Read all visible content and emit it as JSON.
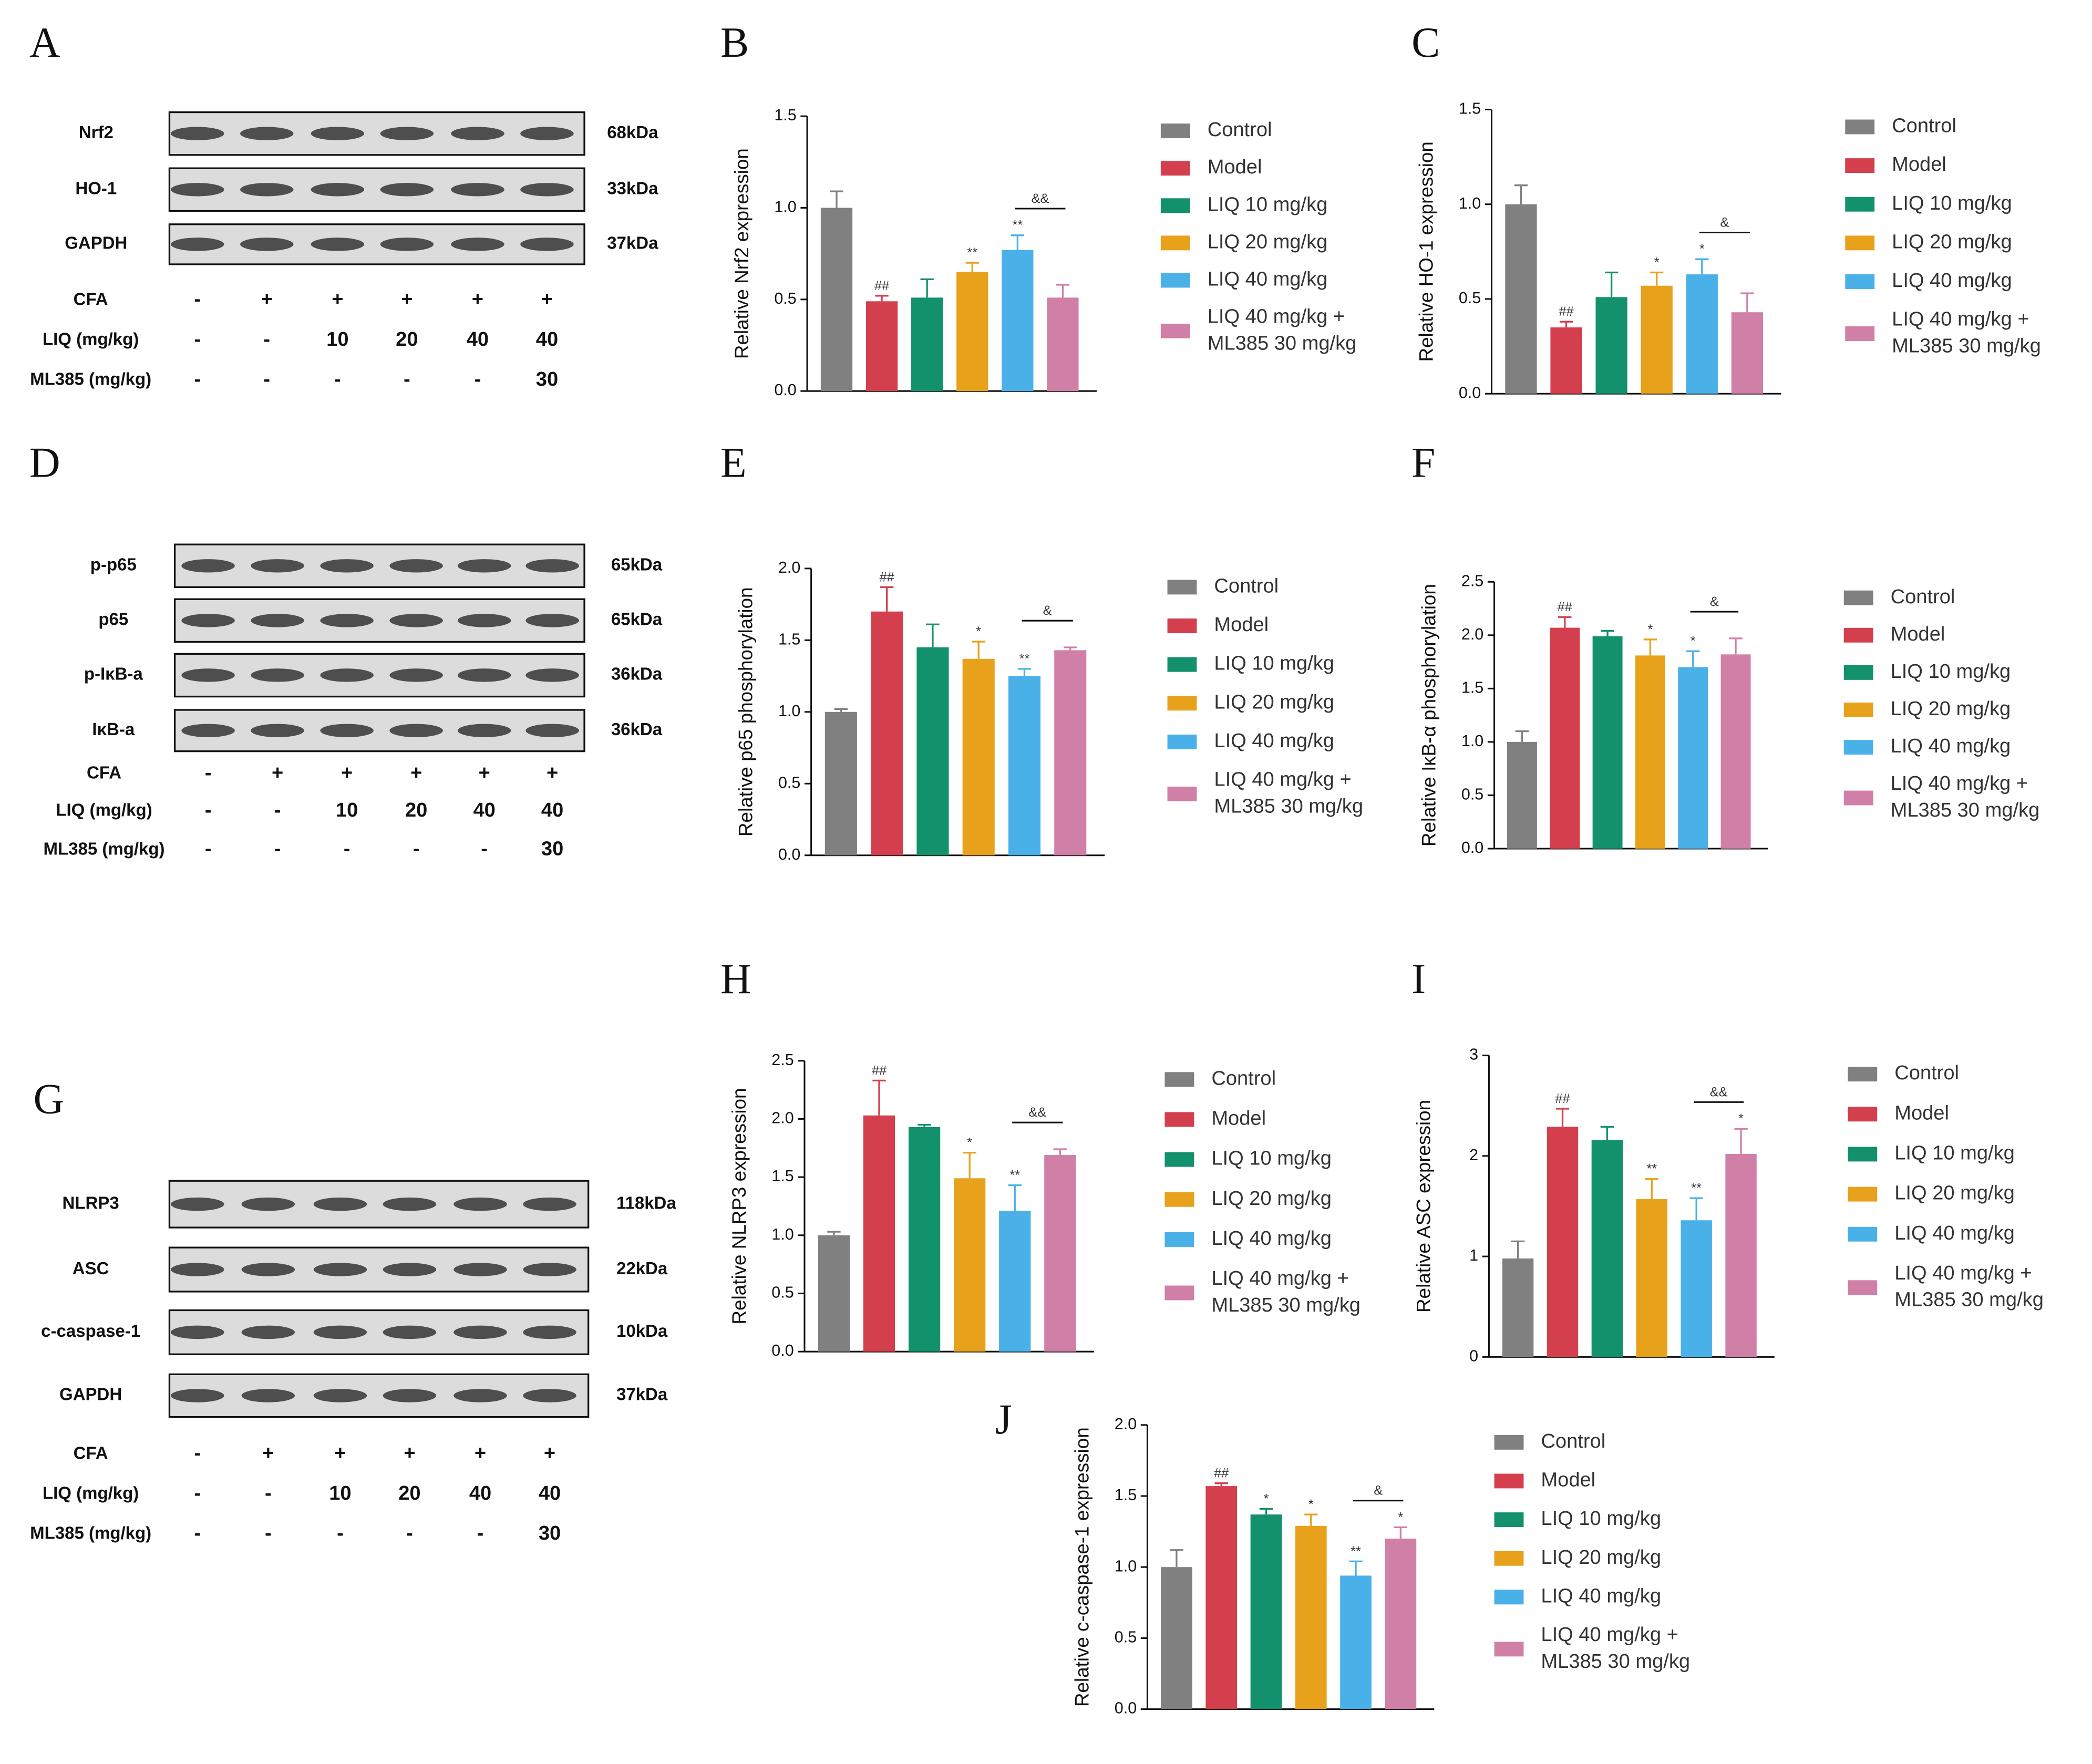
{
  "chart_data": [
    {
      "type": "bar",
      "panel": "B",
      "y_label": "Relative Nrf2 expression",
      "categories": [
        "Control",
        "Model",
        "LIQ 10 mg/kg",
        "LIQ 20 mg/kg",
        "LIQ 40 mg/kg",
        "LIQ 40 mg/kg + ML385 30 mg/kg"
      ],
      "colors": [
        "#808080",
        "#d43f4e",
        "#13906c",
        "#e8a11a",
        "#4ab1e8",
        "#d07fa6"
      ],
      "values": [
        1.0,
        0.49,
        0.51,
        0.65,
        0.77,
        0.51
      ],
      "errors": [
        0.09,
        0.03,
        0.1,
        0.05,
        0.08,
        0.07
      ],
      "significance": [
        null,
        "##",
        null,
        "**",
        "**",
        null
      ],
      "bracket_label": "&&",
      "ylim": [
        0,
        1.5
      ],
      "yticks": [
        {
          "value": 0,
          "label": "0.0"
        },
        0.5,
        {
          "value": 1,
          "label": "1.0"
        },
        1.5
      ]
    },
    {
      "type": "bar",
      "panel": "C",
      "y_label": "Relative HO-1 expression",
      "categories": [
        "Control",
        "Model",
        "LIQ 10 mg/kg",
        "LIQ 20 mg/kg",
        "LIQ 40 mg/kg",
        "LIQ 40 mg/kg + ML385 30 mg/kg"
      ],
      "colors": [
        "#808080",
        "#d43f4e",
        "#13906c",
        "#e8a11a",
        "#4ab1e8",
        "#d07fa6"
      ],
      "values": [
        1.0,
        0.35,
        0.51,
        0.57,
        0.63,
        0.43
      ],
      "errors": [
        0.1,
        0.03,
        0.13,
        0.07,
        0.08,
        0.1
      ],
      "significance": [
        null,
        "##",
        null,
        "*",
        "*",
        null
      ],
      "bracket_label": "&",
      "ylim": [
        0,
        1.5
      ],
      "yticks": [
        {
          "value": 0,
          "label": "0.0"
        },
        0.5,
        {
          "value": 1,
          "label": "1.0"
        },
        1.5
      ]
    },
    {
      "type": "bar",
      "panel": "E",
      "y_label": "Relative p65 phosphorylation",
      "categories": [
        "Control",
        "Model",
        "LIQ 10 mg/kg",
        "LIQ 20 mg/kg",
        "LIQ 40 mg/kg",
        "LIQ 40 mg/kg + ML385 30 mg/kg"
      ],
      "colors": [
        "#808080",
        "#d43f4e",
        "#13906c",
        "#e8a11a",
        "#4ab1e8",
        "#d07fa6"
      ],
      "values": [
        1.0,
        1.7,
        1.45,
        1.37,
        1.25,
        1.43
      ],
      "errors": [
        0.02,
        0.17,
        0.16,
        0.12,
        0.05,
        0.02
      ],
      "significance": [
        null,
        "##",
        null,
        "*",
        "**",
        null
      ],
      "bracket_label": "&",
      "ylim": [
        0,
        2
      ],
      "yticks": [
        {
          "value": 0,
          "label": "0.0"
        },
        0.5,
        {
          "value": 1,
          "label": "1.0"
        },
        1.5,
        {
          "value": 2,
          "label": "2.0"
        }
      ]
    },
    {
      "type": "bar",
      "panel": "F",
      "y_label": "Relative IκB-α phosphorylation",
      "categories": [
        "Control",
        "Model",
        "LIQ 10 mg/kg",
        "LIQ 20 mg/kg",
        "LIQ 40 mg/kg",
        "LIQ 40 mg/kg + ML385 30 mg/kg"
      ],
      "colors": [
        "#808080",
        "#d43f4e",
        "#13906c",
        "#e8a11a",
        "#4ab1e8",
        "#d07fa6"
      ],
      "values": [
        1.0,
        2.07,
        1.99,
        1.81,
        1.7,
        1.82
      ],
      "errors": [
        0.1,
        0.1,
        0.05,
        0.15,
        0.15,
        0.15
      ],
      "significance": [
        null,
        "##",
        null,
        "*",
        "*",
        null
      ],
      "bracket_label": "&",
      "ylim": [
        0,
        2.5
      ],
      "yticks": [
        {
          "value": 0,
          "label": "0.0"
        },
        0.5,
        {
          "value": 1,
          "label": "1.0"
        },
        1.5,
        {
          "value": 2,
          "label": "2.0"
        },
        2.5
      ]
    },
    {
      "type": "bar",
      "panel": "H",
      "y_label": "Relative NLRP3 expression",
      "categories": [
        "Control",
        "Model",
        "LIQ 10 mg/kg",
        "LIQ 20 mg/kg",
        "LIQ 40 mg/kg",
        "LIQ 40 mg/kg + ML385 30 mg/kg"
      ],
      "colors": [
        "#808080",
        "#d43f4e",
        "#13906c",
        "#e8a11a",
        "#4ab1e8",
        "#d07fa6"
      ],
      "values": [
        1.0,
        2.03,
        1.93,
        1.49,
        1.21,
        1.69
      ],
      "errors": [
        0.03,
        0.3,
        0.02,
        0.22,
        0.22,
        0.05
      ],
      "significance": [
        null,
        "##",
        null,
        "*",
        "**",
        null
      ],
      "bracket_label": "&&",
      "ylim": [
        0,
        2.5
      ],
      "yticks": [
        {
          "value": 0,
          "label": "0.0"
        },
        0.5,
        {
          "value": 1,
          "label": "1.0"
        },
        1.5,
        {
          "value": 2,
          "label": "2.0"
        },
        2.5
      ]
    },
    {
      "type": "bar",
      "panel": "I",
      "y_label": "Relative ASC expression",
      "categories": [
        "Control",
        "Model",
        "LIQ 10 mg/kg",
        "LIQ 20 mg/kg",
        "LIQ 40 mg/kg",
        "LIQ 40 mg/kg + ML385 30 mg/kg"
      ],
      "colors": [
        "#808080",
        "#d43f4e",
        "#13906c",
        "#e8a11a",
        "#4ab1e8",
        "#d07fa6"
      ],
      "values": [
        0.98,
        2.29,
        2.16,
        1.57,
        1.36,
        2.02
      ],
      "errors": [
        0.17,
        0.18,
        0.13,
        0.2,
        0.22,
        0.25
      ],
      "significance": [
        null,
        "##",
        null,
        "**",
        "**",
        "*"
      ],
      "bracket_label": "&&",
      "ylim": [
        0,
        3
      ],
      "yticks": [
        0,
        1,
        2,
        3
      ]
    },
    {
      "type": "bar",
      "panel": "J",
      "y_label": "Relative c-caspase-1 expression",
      "categories": [
        "Control",
        "Model",
        "LIQ 10 mg/kg",
        "LIQ 20 mg/kg",
        "LIQ 40 mg/kg",
        "LIQ 40 mg/kg + ML385 30 mg/kg"
      ],
      "colors": [
        "#808080",
        "#d43f4e",
        "#13906c",
        "#e8a11a",
        "#4ab1e8",
        "#d07fa6"
      ],
      "values": [
        1.0,
        1.57,
        1.37,
        1.29,
        0.94,
        1.2
      ],
      "errors": [
        0.12,
        0.02,
        0.04,
        0.08,
        0.1,
        0.08
      ],
      "significance": [
        null,
        "##",
        "*",
        "*",
        "**",
        "*"
      ],
      "bracket_label": "&",
      "ylim": [
        0,
        2
      ],
      "yticks": [
        {
          "value": 0,
          "label": "0.0"
        },
        0.5,
        {
          "value": 1,
          "label": "1.0"
        },
        1.5,
        {
          "value": 2,
          "label": "2.0"
        }
      ]
    }
  ],
  "blots": [
    {
      "panel": "A",
      "rows": [
        {
          "protein": "Nrf2",
          "size": "68kDa"
        },
        {
          "protein": "HO-1",
          "size": "33kDa"
        },
        {
          "protein": "GAPDH",
          "size": "37kDa"
        }
      ],
      "conditions": [
        {
          "label": "CFA",
          "values": [
            "-",
            "+",
            "+",
            "+",
            "+",
            "+"
          ]
        },
        {
          "label": "LIQ (mg/kg)",
          "values": [
            "-",
            "-",
            "10",
            "20",
            "40",
            "40"
          ]
        },
        {
          "label": "ML385 (mg/kg)",
          "values": [
            "-",
            "-",
            "-",
            "-",
            "-",
            "30"
          ]
        }
      ]
    },
    {
      "panel": "D",
      "rows": [
        {
          "protein": "p-p65",
          "size": "65kDa"
        },
        {
          "protein": "p65",
          "size": "65kDa"
        },
        {
          "protein": "p-IκB-a",
          "size": "36kDa"
        },
        {
          "protein": "IκB-a",
          "size": "36kDa"
        }
      ],
      "conditions": [
        {
          "label": "CFA",
          "values": [
            "-",
            "+",
            "+",
            "+",
            "+",
            "+"
          ]
        },
        {
          "label": "LIQ (mg/kg)",
          "values": [
            "-",
            "-",
            "10",
            "20",
            "40",
            "40"
          ]
        },
        {
          "label": "ML385 (mg/kg)",
          "values": [
            "-",
            "-",
            "-",
            "-",
            "-",
            "30"
          ]
        }
      ]
    },
    {
      "panel": "G",
      "rows": [
        {
          "protein": "NLRP3",
          "size": "118kDa"
        },
        {
          "protein": "ASC",
          "size": "22kDa"
        },
        {
          "protein": "c-caspase-1",
          "size": "10kDa"
        },
        {
          "protein": "GAPDH",
          "size": "37kDa"
        }
      ],
      "conditions": [
        {
          "label": "CFA",
          "values": [
            "-",
            "+",
            "+",
            "+",
            "+",
            "+"
          ]
        },
        {
          "label": "LIQ (mg/kg)",
          "values": [
            "-",
            "-",
            "10",
            "20",
            "40",
            "40"
          ]
        },
        {
          "label": "ML385 (mg/kg)",
          "values": [
            "-",
            "-",
            "-",
            "-",
            "-",
            "30"
          ]
        }
      ]
    }
  ]
}
